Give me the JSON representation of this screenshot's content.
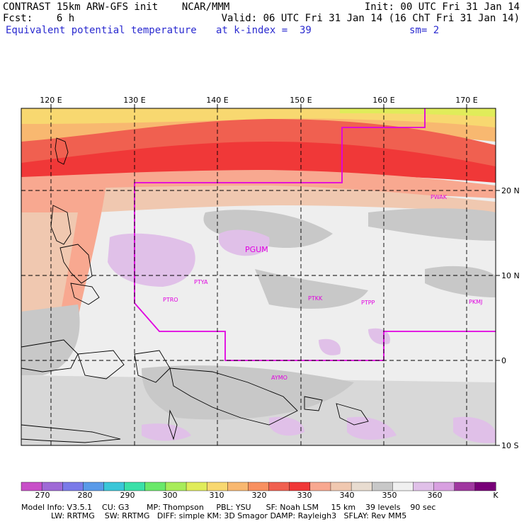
{
  "header": {
    "line1_left": "CONTRAST 15km ARW-GFS init    NCAR/MMM",
    "line1_right": "Init: 00 UTC Fri 31 Jan 14",
    "line2_left": "Fcst:    6 h",
    "line2_right": "Valid: 06 UTC Fri 31 Jan 14 (16 ChT Fri 31 Jan 14)",
    "field": "Equivalent potential temperature",
    "level": "at k-index =  39",
    "smooth": "sm= 2"
  },
  "map": {
    "lon_labels": [
      "120 E",
      "130 E",
      "140 E",
      "150 E",
      "160 E",
      "170 E"
    ],
    "lat_labels": [
      "20 N",
      "10 N",
      "0",
      "10 S"
    ],
    "stations": [
      {
        "id": "PWAK"
      },
      {
        "id": "PGUM"
      },
      {
        "id": "PTYA"
      },
      {
        "id": "PTRO"
      },
      {
        "id": "PTKK"
      },
      {
        "id": "PTPP"
      },
      {
        "id": "PKMJ"
      },
      {
        "id": "AYMO"
      }
    ],
    "colors": {
      "outline": "#e000e0",
      "grid": "#000000"
    }
  },
  "colorbar": {
    "labels": [
      "270",
      "280",
      "290",
      "300",
      "310",
      "320",
      "330",
      "340",
      "350",
      "360"
    ],
    "unit": "K",
    "colors": [
      "#c84fc8",
      "#9f6ad6",
      "#7a7ae8",
      "#5a9ae8",
      "#3ac6d8",
      "#3ae0a8",
      "#6ae86a",
      "#a8ec5a",
      "#e0ec5a",
      "#f8d870",
      "#f8b870",
      "#f89060",
      "#f06050",
      "#f03838",
      "#f8a890",
      "#f0c8b0",
      "#e8dcd0",
      "#c8c8c8",
      "#f0f0f0",
      "#e0c0e8",
      "#d8a0e0",
      "#a038a0",
      "#780078"
    ]
  },
  "footer": {
    "line1": "Model Info: V3.5.1    CU: G3       MP: Thompson     PBL: YSU      SF: Noah LSM     15 km    39 levels    90 sec",
    "line2": "LW: RRTMG    SW: RRTMG   DIFF: simple KM: 3D Smagor DAMP: Rayleigh3   SFLAY: Rev MM5"
  }
}
